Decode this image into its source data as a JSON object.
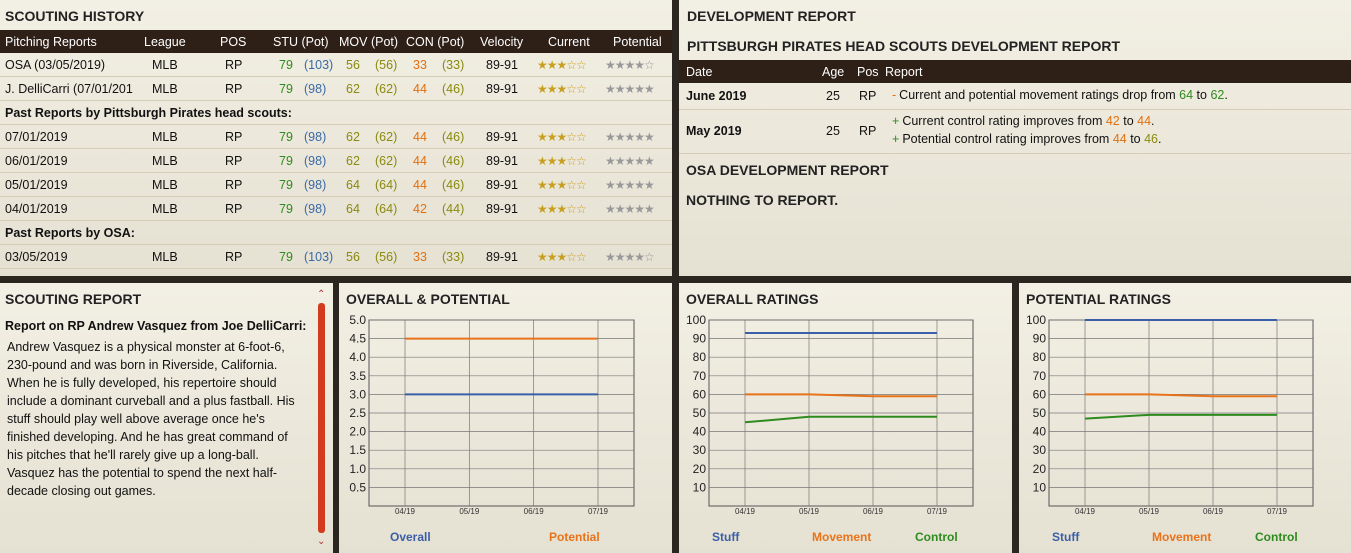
{
  "history": {
    "title": "SCOUTING HISTORY",
    "headers": [
      "Pitching Reports",
      "League",
      "POS",
      "STU (Pot)",
      "MOV (Pot)",
      "CON (Pot)",
      "Velocity",
      "Current",
      "Potential"
    ],
    "rows": [
      {
        "type": "row",
        "name": "OSA (03/05/2019)",
        "league": "MLB",
        "pos": "RP",
        "stu": "79",
        "stup": "(103)",
        "mov": "56",
        "movp": "(56)",
        "con": "33",
        "conp": "(33)",
        "vel": "89-91",
        "cur": 2.5,
        "pot": 3.5
      },
      {
        "type": "row",
        "name": "J. DelliCarri (07/01/201",
        "league": "MLB",
        "pos": "RP",
        "stu": "79",
        "stup": "(98)",
        "mov": "62",
        "movp": "(62)",
        "con": "44",
        "conp": "(46)",
        "vel": "89-91",
        "cur": 3,
        "pot": 4.5
      },
      {
        "type": "sec",
        "name": "Past Reports by Pittsburgh Pirates head scouts:"
      },
      {
        "type": "row",
        "name": "07/01/2019",
        "league": "MLB",
        "pos": "RP",
        "stu": "79",
        "stup": "(98)",
        "mov": "62",
        "movp": "(62)",
        "con": "44",
        "conp": "(46)",
        "vel": "89-91",
        "cur": 3,
        "pot": 4.5
      },
      {
        "type": "row",
        "name": "06/01/2019",
        "league": "MLB",
        "pos": "RP",
        "stu": "79",
        "stup": "(98)",
        "mov": "62",
        "movp": "(62)",
        "con": "44",
        "conp": "(46)",
        "vel": "89-91",
        "cur": 3,
        "pot": 4.5
      },
      {
        "type": "row",
        "name": "05/01/2019",
        "league": "MLB",
        "pos": "RP",
        "stu": "79",
        "stup": "(98)",
        "mov": "64",
        "movp": "(64)",
        "con": "44",
        "conp": "(46)",
        "vel": "89-91",
        "cur": 3,
        "pot": 4.5
      },
      {
        "type": "row",
        "name": "04/01/2019",
        "league": "MLB",
        "pos": "RP",
        "stu": "79",
        "stup": "(98)",
        "mov": "64",
        "movp": "(64)",
        "con": "42",
        "conp": "(44)",
        "vel": "89-91",
        "cur": 3,
        "pot": 4.5
      },
      {
        "type": "sec",
        "name": "Past Reports by OSA:"
      },
      {
        "type": "row",
        "name": "03/05/2019",
        "league": "MLB",
        "pos": "RP",
        "stu": "79",
        "stup": "(103)",
        "mov": "56",
        "movp": "(56)",
        "con": "33",
        "conp": "(33)",
        "vel": "89-91",
        "cur": 2.5,
        "pot": 3.5
      }
    ]
  },
  "dev": {
    "title": "DEVELOPMENT REPORT",
    "subtitle": "PITTSBURGH PIRATES HEAD SCOUTS DEVELOPMENT REPORT",
    "headers": [
      "Date",
      "Age",
      "Pos",
      "Report"
    ],
    "entries": [
      {
        "date": "June 2019",
        "age": "25",
        "pos": "RP",
        "lines": [
          {
            "sign": "-",
            "text": "Current and potential movement ratings drop from ",
            "a": "64",
            "mid": " to ",
            "b": "62",
            "end": ".",
            "ca": "g",
            "cb": "g"
          }
        ]
      },
      {
        "date": "May 2019",
        "age": "25",
        "pos": "RP",
        "lines": [
          {
            "sign": "+",
            "text": "Current control rating improves from ",
            "a": "42",
            "mid": " to ",
            "b": "44",
            "end": ".",
            "ca": "o",
            "cb": "o"
          },
          {
            "sign": "+",
            "text": "Potential control rating improves from ",
            "a": "44",
            "mid": " to ",
            "b": "46",
            "end": ".",
            "ca": "o",
            "cb": "og"
          }
        ]
      }
    ],
    "osa_title": "OSA DEVELOPMENT REPORT",
    "nothing": "NOTHING TO REPORT."
  },
  "scouting_report": {
    "title": "SCOUTING REPORT",
    "heading": "Report on RP Andrew Vasquez from Joe DelliCarri:",
    "body": "Andrew Vasquez is a physical monster at 6-foot-6, 230-pound and was born in Riverside, California. When he is fully developed, his repertoire should include a dominant curveball and a plus fastball. His stuff should play well above average once he's finished developing. And he has great command of his pitches that he'll rarely give up a long-ball. Vasquez has the potential to spend the next half-decade closing out games."
  },
  "colors": {
    "blue": "#3a5fa8",
    "orange": "#e8731a",
    "green": "#2e8b1e"
  },
  "chart_data": [
    {
      "type": "line",
      "title": "OVERALL & POTENTIAL",
      "x": [
        "04/19",
        "05/19",
        "06/19",
        "07/19"
      ],
      "ylim": [
        0,
        5
      ],
      "yticks": [
        "0.5",
        "1.0",
        "1.5",
        "2.0",
        "2.5",
        "3.0",
        "3.5",
        "4.0",
        "4.5",
        "5.0"
      ],
      "series": [
        {
          "name": "Overall",
          "color": "#3a5fa8",
          "values": [
            3,
            3,
            3,
            3
          ]
        },
        {
          "name": "Potential",
          "color": "#e8731a",
          "values": [
            4.5,
            4.5,
            4.5,
            4.5
          ]
        }
      ]
    },
    {
      "type": "line",
      "title": "OVERALL RATINGS",
      "x": [
        "04/19",
        "05/19",
        "06/19",
        "07/19"
      ],
      "ylim": [
        0,
        100
      ],
      "yticks": [
        "10",
        "20",
        "30",
        "40",
        "50",
        "60",
        "70",
        "80",
        "90",
        "100"
      ],
      "series": [
        {
          "name": "Stuff",
          "color": "#3a5fa8",
          "values": [
            93,
            93,
            93,
            93
          ]
        },
        {
          "name": "Movement",
          "color": "#e8731a",
          "values": [
            60,
            60,
            59,
            59
          ]
        },
        {
          "name": "Control",
          "color": "#2e8b1e",
          "values": [
            45,
            48,
            48,
            48
          ]
        }
      ]
    },
    {
      "type": "line",
      "title": "POTENTIAL RATINGS",
      "x": [
        "04/19",
        "05/19",
        "06/19",
        "07/19"
      ],
      "ylim": [
        0,
        100
      ],
      "yticks": [
        "10",
        "20",
        "30",
        "40",
        "50",
        "60",
        "70",
        "80",
        "90",
        "100"
      ],
      "series": [
        {
          "name": "Stuff",
          "color": "#3a5fa8",
          "values": [
            100,
            100,
            100,
            100
          ]
        },
        {
          "name": "Movement",
          "color": "#e8731a",
          "values": [
            60,
            60,
            59,
            59
          ]
        },
        {
          "name": "Control",
          "color": "#2e8b1e",
          "values": [
            47,
            49,
            49,
            49
          ]
        }
      ]
    }
  ]
}
